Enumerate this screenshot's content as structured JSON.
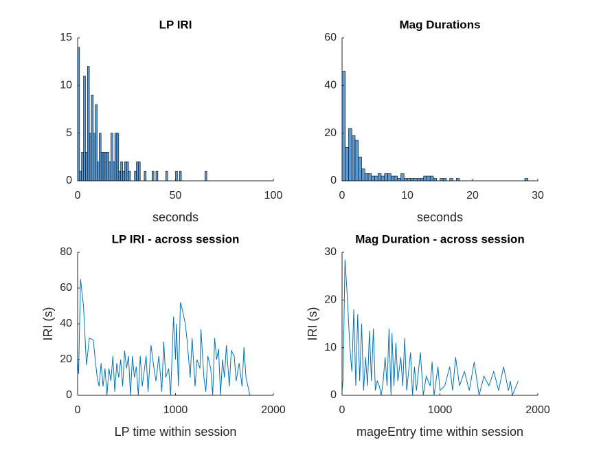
{
  "chart_data": [
    {
      "type": "histogram",
      "title": "LP IRI",
      "xlabel": "seconds",
      "color": "#5b9bd5",
      "bins": [
        0,
        1,
        2,
        3,
        4,
        5,
        6,
        7,
        8,
        9,
        10,
        11,
        12,
        13,
        14,
        15,
        16,
        17,
        18,
        19,
        20,
        21,
        22,
        23,
        24,
        25,
        26,
        27,
        28,
        29,
        30,
        31,
        32,
        33,
        34,
        35,
        36,
        37,
        38,
        39,
        40,
        41,
        42,
        43,
        44,
        45,
        46,
        47,
        48,
        49,
        50,
        51,
        52,
        53,
        54,
        55,
        56,
        57,
        58,
        59,
        60,
        61,
        62,
        63,
        64,
        65,
        66
      ],
      "values": [
        14,
        1,
        3,
        11,
        3,
        12,
        5,
        9,
        5,
        8,
        2,
        5,
        3,
        3,
        3,
        3,
        2,
        5,
        2,
        5,
        5,
        1,
        2,
        1,
        2,
        2,
        1,
        0,
        0,
        1,
        2,
        2,
        0,
        0,
        1,
        0,
        0,
        0,
        1,
        0,
        1,
        0,
        0,
        0,
        0,
        1,
        0,
        0,
        0,
        0,
        1,
        0,
        1,
        0,
        0,
        0,
        0,
        0,
        0,
        0,
        0,
        0,
        0,
        0,
        0,
        1
      ],
      "xlim": [
        0,
        100
      ],
      "xticks": [
        0,
        50,
        100
      ],
      "ylim": [
        0,
        15
      ],
      "yticks": [
        0,
        5,
        10,
        15
      ]
    },
    {
      "type": "histogram",
      "title": "Mag Durations",
      "xlabel": "seconds",
      "color": "#5b9bd5",
      "bins": [
        0,
        0.5,
        1,
        1.5,
        2,
        2.5,
        3,
        3.5,
        4,
        4.5,
        5,
        5.5,
        6,
        6.5,
        7,
        7.5,
        8,
        8.5,
        9,
        9.5,
        10,
        10.5,
        11,
        11.5,
        12,
        12.5,
        13,
        13.5,
        14,
        14.5,
        15,
        15.5,
        16,
        16.5,
        17,
        17.5,
        18,
        18.5,
        19,
        19.5,
        20,
        20.5,
        21,
        21.5,
        22,
        22.5,
        23,
        23.5,
        24,
        24.5,
        25,
        25.5,
        26,
        26.5,
        27,
        27.5,
        28,
        28.5
      ],
      "values": [
        46,
        14,
        22,
        19,
        17,
        10,
        5,
        3,
        3,
        2,
        2,
        3,
        2,
        3,
        3,
        2,
        2,
        1,
        3,
        1,
        1,
        1,
        1,
        1,
        1,
        2,
        2,
        2,
        1,
        0,
        1,
        1,
        0,
        1,
        0,
        1,
        0,
        0,
        0,
        0,
        0,
        0,
        0,
        0,
        0,
        0,
        0,
        0,
        0,
        0,
        0,
        0,
        0,
        0,
        0,
        0,
        1
      ],
      "xlim": [
        0,
        30
      ],
      "xticks": [
        0,
        10,
        20,
        30
      ],
      "ylim": [
        0,
        60
      ],
      "yticks": [
        0,
        20,
        40,
        60
      ]
    },
    {
      "type": "line",
      "title": "LP IRI - across session",
      "xlabel": "LP time within session",
      "ylabel": "IRI (s)",
      "color": "#0072bd",
      "x": [
        0,
        10,
        30,
        60,
        90,
        120,
        160,
        180,
        200,
        220,
        240,
        260,
        280,
        300,
        320,
        340,
        360,
        380,
        400,
        420,
        440,
        460,
        480,
        500,
        520,
        540,
        560,
        580,
        600,
        620,
        640,
        660,
        700,
        720,
        750,
        780,
        800,
        830,
        860,
        880,
        900,
        930,
        950,
        980,
        1000,
        1010,
        1030,
        1050,
        1070,
        1100,
        1120,
        1150,
        1170,
        1200,
        1220,
        1250,
        1260,
        1290,
        1310,
        1330,
        1360,
        1380,
        1400,
        1420,
        1440,
        1460,
        1480,
        1500,
        1520,
        1550,
        1570,
        1600,
        1620,
        1650,
        1680,
        1700,
        1720,
        1760
      ],
      "values": [
        20,
        12,
        65,
        50,
        17,
        32,
        31,
        20,
        10,
        5,
        18,
        5,
        15,
        0,
        15,
        8,
        22,
        2,
        18,
        10,
        20,
        5,
        25,
        15,
        22,
        0,
        22,
        10,
        16,
        0,
        22,
        5,
        22,
        2,
        28,
        15,
        8,
        22,
        2,
        30,
        10,
        15,
        0,
        44,
        20,
        40,
        5,
        52,
        48,
        40,
        30,
        10,
        32,
        5,
        20,
        15,
        37,
        10,
        2,
        22,
        15,
        0,
        32,
        20,
        26,
        0,
        20,
        10,
        28,
        5,
        25,
        22,
        8,
        18,
        5,
        27,
        10,
        0
      ],
      "xlim": [
        0,
        2000
      ],
      "xticks": [
        0,
        1000,
        2000
      ],
      "ylim": [
        0,
        80
      ],
      "yticks": [
        0,
        20,
        40,
        60,
        80
      ]
    },
    {
      "type": "line",
      "title": "Mag Duration - across session",
      "xlabel": "mageEntry time within session",
      "ylabel": "IRI (s)",
      "color": "#0072bd",
      "x": [
        0,
        10,
        30,
        50,
        80,
        100,
        120,
        140,
        160,
        180,
        200,
        220,
        240,
        260,
        280,
        300,
        320,
        340,
        360,
        380,
        400,
        420,
        440,
        460,
        480,
        500,
        510,
        530,
        550,
        570,
        600,
        620,
        640,
        660,
        700,
        720,
        740,
        760,
        800,
        830,
        860,
        900,
        920,
        940,
        980,
        1000,
        1050,
        1100,
        1130,
        1160,
        1200,
        1250,
        1300,
        1350,
        1400,
        1450,
        1500,
        1550,
        1600,
        1650,
        1700,
        1720,
        1740,
        1780,
        1800
      ],
      "values": [
        1,
        3,
        28.5,
        22,
        10,
        5,
        18,
        2,
        17,
        3,
        15,
        1,
        8,
        2,
        13.5,
        3,
        14,
        1,
        3,
        2,
        0,
        3,
        8,
        2,
        14,
        0,
        13,
        2,
        11,
        3,
        8,
        2,
        12,
        1,
        9,
        0,
        6,
        1,
        9,
        0,
        4,
        2,
        7,
        0,
        6,
        1,
        2,
        6,
        1,
        8,
        2,
        5,
        1,
        7,
        0,
        4,
        2,
        5,
        1,
        6,
        1,
        3,
        0,
        2,
        3
      ],
      "xlim": [
        0,
        2000
      ],
      "xticks": [
        0,
        1000,
        2000
      ],
      "ylim": [
        0,
        30
      ],
      "yticks": [
        0,
        10,
        20,
        30
      ]
    }
  ]
}
